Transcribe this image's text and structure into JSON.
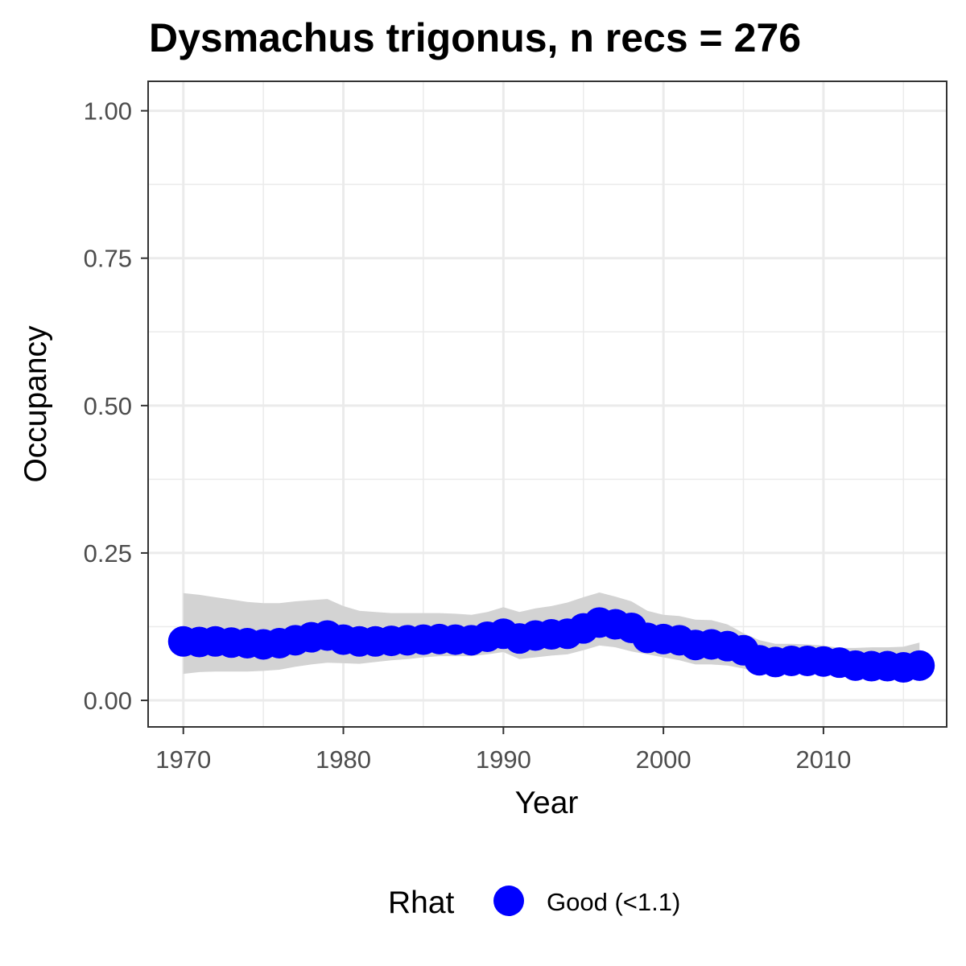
{
  "chart_data": {
    "type": "line",
    "title": "Dysmachus trigonus, n recs = 276",
    "xlabel": "Year",
    "ylabel": "Occupancy",
    "xlim": [
      1967.8,
      2017.7
    ],
    "ylim": [
      -0.045,
      1.05
    ],
    "x_ticks": [
      1970,
      1980,
      1990,
      2000,
      2010
    ],
    "x_tick_labels": [
      "1970",
      "1980",
      "1990",
      "2000",
      "2010"
    ],
    "y_ticks": [
      0,
      0.25,
      0.5,
      0.75,
      1
    ],
    "y_tick_labels": [
      "0.00",
      "0.25",
      "0.50",
      "0.75",
      "1.00"
    ],
    "grid": true,
    "x": [
      1970,
      1971,
      1972,
      1973,
      1974,
      1975,
      1976,
      1977,
      1978,
      1979,
      1980,
      1981,
      1982,
      1983,
      1984,
      1985,
      1986,
      1987,
      1988,
      1989,
      1990,
      1991,
      1992,
      1993,
      1994,
      1995,
      1996,
      1997,
      1998,
      1999,
      2000,
      2001,
      2002,
      2003,
      2004,
      2005,
      2006,
      2007,
      2008,
      2009,
      2010,
      2011,
      2012,
      2013,
      2014,
      2015,
      2016
    ],
    "series": [
      {
        "name": "Good (<1.1)",
        "color": "#0000ff",
        "values": [
          0.1,
          0.099,
          0.1,
          0.098,
          0.097,
          0.095,
          0.097,
          0.102,
          0.107,
          0.11,
          0.103,
          0.1,
          0.1,
          0.101,
          0.102,
          0.103,
          0.104,
          0.103,
          0.102,
          0.108,
          0.113,
          0.105,
          0.11,
          0.112,
          0.113,
          0.122,
          0.132,
          0.129,
          0.123,
          0.106,
          0.104,
          0.102,
          0.094,
          0.095,
          0.092,
          0.085,
          0.068,
          0.065,
          0.067,
          0.067,
          0.066,
          0.064,
          0.059,
          0.058,
          0.058,
          0.056,
          0.059
        ]
      }
    ],
    "ci_lower": [
      0.045,
      0.048,
      0.049,
      0.049,
      0.049,
      0.05,
      0.052,
      0.057,
      0.061,
      0.064,
      0.063,
      0.062,
      0.065,
      0.068,
      0.07,
      0.073,
      0.075,
      0.075,
      0.075,
      0.078,
      0.082,
      0.07,
      0.073,
      0.076,
      0.078,
      0.085,
      0.093,
      0.09,
      0.083,
      0.078,
      0.073,
      0.068,
      0.061,
      0.061,
      0.059,
      0.054,
      0.046,
      0.045,
      0.046,
      0.045,
      0.046,
      0.044,
      0.04,
      0.04,
      0.04,
      0.039,
      0.04
    ],
    "ci_upper": [
      0.182,
      0.179,
      0.175,
      0.171,
      0.167,
      0.165,
      0.165,
      0.168,
      0.17,
      0.172,
      0.16,
      0.152,
      0.15,
      0.148,
      0.148,
      0.148,
      0.148,
      0.147,
      0.145,
      0.15,
      0.158,
      0.15,
      0.156,
      0.16,
      0.166,
      0.175,
      0.183,
      0.176,
      0.168,
      0.152,
      0.145,
      0.143,
      0.137,
      0.136,
      0.129,
      0.114,
      0.102,
      0.096,
      0.096,
      0.095,
      0.093,
      0.089,
      0.089,
      0.09,
      0.09,
      0.091,
      0.098
    ],
    "legend": {
      "title": "Rhat",
      "position": "bottom",
      "entries": [
        {
          "label": "Good (<1.1)",
          "color": "#0000ff"
        }
      ]
    }
  }
}
